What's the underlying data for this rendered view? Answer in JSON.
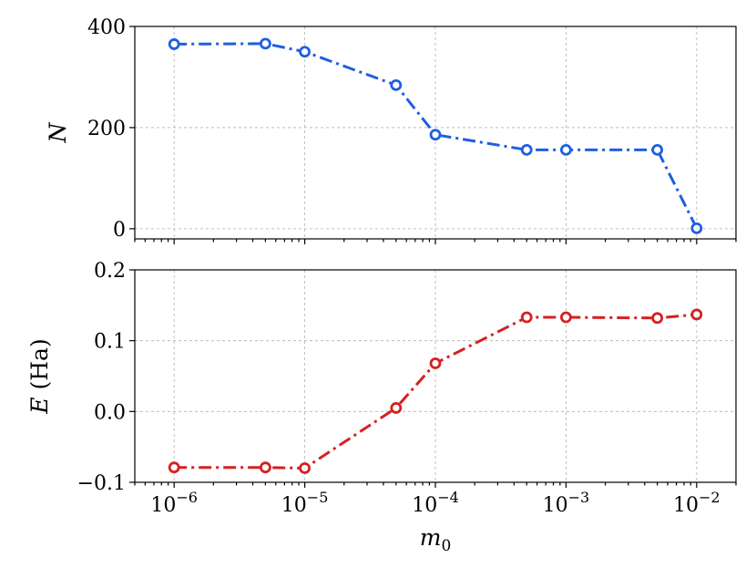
{
  "chart_data": [
    {
      "type": "line",
      "ylabel": "N",
      "xscale": "log",
      "xlim": [
        5e-07,
        0.02
      ],
      "ylim": [
        -20,
        400
      ],
      "yticks": [
        0,
        200,
        400
      ],
      "ytick_labels": [
        "0",
        "200",
        "400"
      ],
      "grid": true,
      "series": [
        {
          "color": "#1f5fe0",
          "linestyle": "dashdot",
          "marker": "open-circle",
          "x": [
            1e-06,
            5e-06,
            1e-05,
            5e-05,
            0.0001,
            0.0005,
            0.001,
            0.005,
            0.01
          ],
          "y": [
            365,
            366,
            350,
            284,
            186,
            156,
            156,
            156,
            1
          ]
        }
      ]
    },
    {
      "type": "line",
      "ylabel_italic": "E",
      "ylabel_unit": "(Ha)",
      "xlabel_base": "m",
      "xlabel_sub": "0",
      "xscale": "log",
      "xlim": [
        5e-07,
        0.02
      ],
      "ylim": [
        -0.1,
        0.2
      ],
      "yticks": [
        -0.1,
        0.0,
        0.1,
        0.2
      ],
      "ytick_labels": [
        "−0.1",
        "0.0",
        "0.1",
        "0.2"
      ],
      "xtick_labels": [
        {
          "value": 1e-06,
          "base": "10",
          "exp": "−6"
        },
        {
          "value": 1e-05,
          "base": "10",
          "exp": "−5"
        },
        {
          "value": 0.0001,
          "base": "10",
          "exp": "−4"
        },
        {
          "value": 0.001,
          "base": "10",
          "exp": "−3"
        },
        {
          "value": 0.01,
          "base": "10",
          "exp": "−2"
        }
      ],
      "grid": true,
      "series": [
        {
          "color": "#d62020",
          "linestyle": "dashdot",
          "marker": "open-circle",
          "x": [
            1e-06,
            5e-06,
            1e-05,
            5e-05,
            0.0001,
            0.0005,
            0.001,
            0.005,
            0.01
          ],
          "y": [
            -0.079,
            -0.079,
            -0.08,
            0.005,
            0.068,
            0.133,
            0.133,
            0.132,
            0.137
          ]
        }
      ]
    }
  ]
}
